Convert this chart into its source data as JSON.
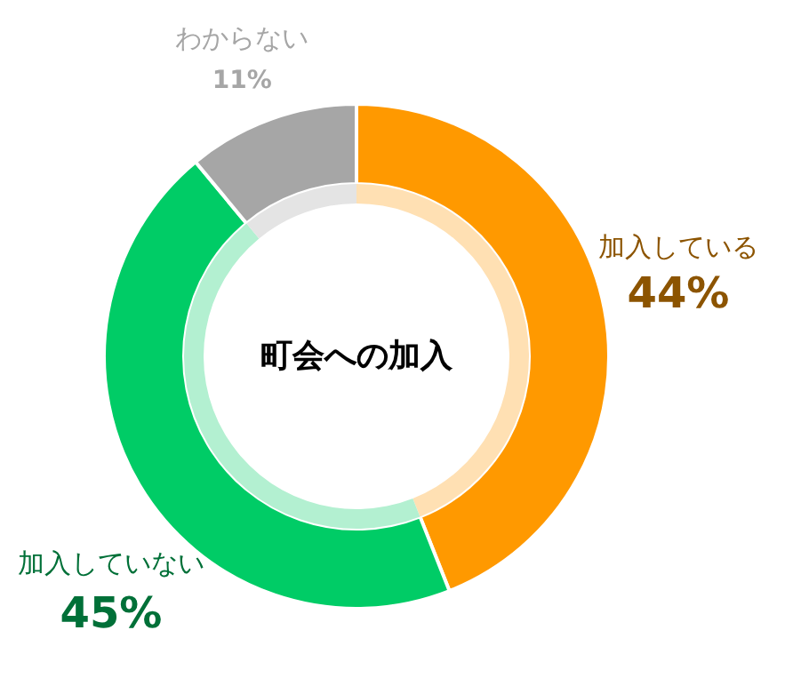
{
  "chart_data": {
    "type": "donut",
    "title": "町会への加入",
    "categories": [
      "加入している",
      "加入していない",
      "わからない"
    ],
    "value_labels": [
      "44%",
      "45%",
      "11%"
    ],
    "series": [
      {
        "values": [
          44,
          45,
          11
        ],
        "colors": [
          "#ff9900",
          "#00cc66",
          "#a6a6a6"
        ]
      },
      {
        "values": [
          44,
          45,
          11
        ],
        "colors": [
          "#ffe0b3",
          "#b3f0d1",
          "#e4e4e4"
        ]
      }
    ]
  }
}
